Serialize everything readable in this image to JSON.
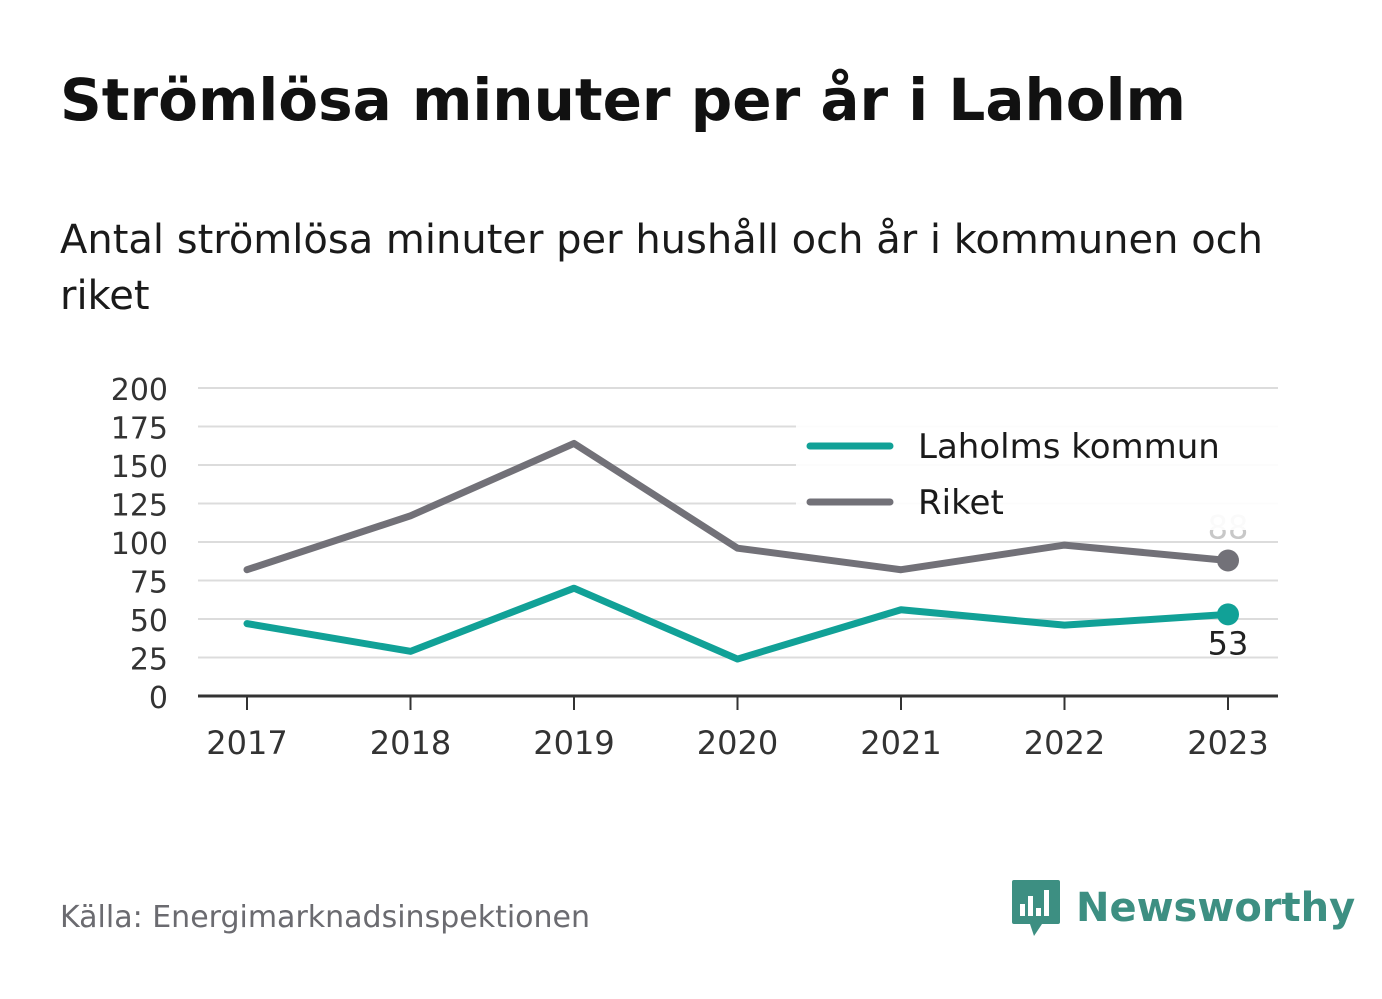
{
  "title": "Strömlösa minuter per år i Laholm",
  "subtitle": "Antal strömlösa minuter per hushåll och år i kommunen och riket",
  "source": "Källa: Energimarknadsinspektionen",
  "brand": {
    "name": "Newsworthy",
    "icon": "newsworthy-logo-icon",
    "color": "#3d8f82"
  },
  "chart_data": {
    "type": "line",
    "title": "Strömlösa minuter per år i Laholm",
    "categories": [
      "2017",
      "2018",
      "2019",
      "2020",
      "2021",
      "2022",
      "2023"
    ],
    "ylim": [
      0,
      200
    ],
    "yticks": [
      0,
      25,
      50,
      75,
      100,
      125,
      150,
      175,
      200
    ],
    "grid": true,
    "legend_position": "top-right",
    "series": [
      {
        "name": "Laholms kommun",
        "color": "#11a197",
        "values": [
          47,
          29,
          70,
          24,
          56,
          46,
          53
        ],
        "end_label": "53"
      },
      {
        "name": "Riket",
        "color": "#727178",
        "values": [
          82,
          117,
          164,
          96,
          82,
          98,
          88
        ],
        "end_label": "88"
      }
    ]
  }
}
